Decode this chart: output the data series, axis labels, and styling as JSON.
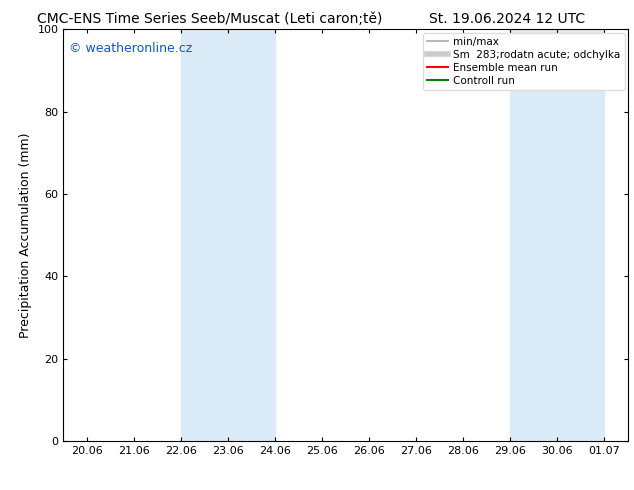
{
  "title_left": "CMC-ENS Time Series Seeb/Muscat (Leti caron;tě)",
  "title_right": "St. 19.06.2024 12 UTC",
  "ylabel": "Precipitation Accumulation (mm)",
  "ylim": [
    0,
    100
  ],
  "xtick_labels": [
    "20.06",
    "21.06",
    "22.06",
    "23.06",
    "24.06",
    "25.06",
    "26.06",
    "27.06",
    "28.06",
    "29.06",
    "30.06",
    "01.07"
  ],
  "xtick_positions": [
    0,
    1,
    2,
    3,
    4,
    5,
    6,
    7,
    8,
    9,
    10,
    11
  ],
  "xlim": [
    -0.5,
    11.5
  ],
  "shaded_regions": [
    {
      "xstart": 2.0,
      "xend": 4.0,
      "color": "#daeaf6"
    },
    {
      "xstart": 9.0,
      "xend": 11.0,
      "color": "#daeaf6"
    }
  ],
  "watermark_text": "© weatheronline.cz",
  "watermark_color": "#1155cc",
  "legend_items": [
    {
      "label": "min/max",
      "color": "#aaaaaa",
      "lw": 1.2
    },
    {
      "label": "Sm  283;rodatn acute; odchylka",
      "color": "#cccccc",
      "lw": 4
    },
    {
      "label": "Ensemble mean run",
      "color": "red",
      "lw": 1.5
    },
    {
      "label": "Controll run",
      "color": "green",
      "lw": 1.5
    }
  ],
  "ytick_labels": [
    "0",
    "20",
    "40",
    "60",
    "80",
    "100"
  ],
  "ytick_positions": [
    0,
    20,
    40,
    60,
    80,
    100
  ],
  "background_color": "#ffffff",
  "plot_bg_color": "#ffffff",
  "font_size_title": 10,
  "font_size_axis": 9,
  "font_size_ticks": 8,
  "font_size_legend": 7.5,
  "font_size_watermark": 9
}
